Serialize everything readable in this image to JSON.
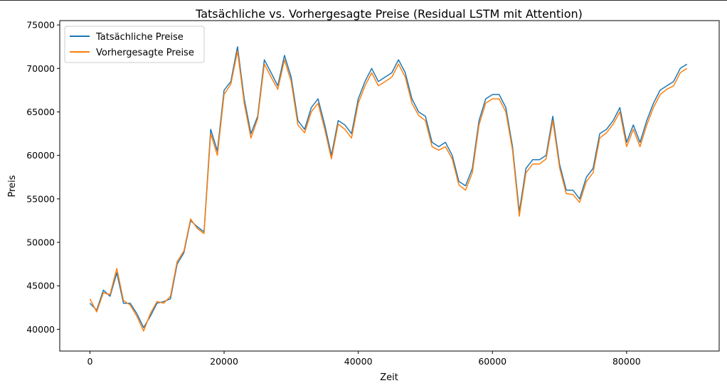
{
  "chart_data": {
    "type": "line",
    "title": "Tatsächliche vs. Vorhergesagte Preise (Residual LSTM mit Attention)",
    "xlabel": "Zeit",
    "ylabel": "Preis",
    "xlim": [
      -4500,
      93800
    ],
    "ylim": [
      37500,
      75500
    ],
    "x_ticks": [
      0,
      20000,
      40000,
      60000,
      80000
    ],
    "x_tick_labels": [
      "0",
      "20000",
      "40000",
      "60000",
      "80000"
    ],
    "y_ticks": [
      40000,
      45000,
      50000,
      55000,
      60000,
      65000,
      70000,
      75000
    ],
    "y_tick_labels": [
      "40000",
      "45000",
      "50000",
      "55000",
      "60000",
      "65000",
      "70000",
      "75000"
    ],
    "grid": false,
    "legend_position": "top-left",
    "series": [
      {
        "name": "Tatsächliche Preise",
        "color": "#1f77b4",
        "x": [
          0,
          1000,
          2000,
          3000,
          4000,
          5000,
          6000,
          7000,
          8000,
          9000,
          10000,
          11000,
          12000,
          13000,
          14000,
          15000,
          16000,
          17000,
          18000,
          19000,
          20000,
          21000,
          22000,
          23000,
          24000,
          25000,
          26000,
          27000,
          28000,
          29000,
          30000,
          31000,
          32000,
          33000,
          34000,
          35000,
          36000,
          37000,
          38000,
          39000,
          40000,
          41000,
          42000,
          43000,
          44000,
          45000,
          46000,
          47000,
          48000,
          49000,
          50000,
          51000,
          52000,
          53000,
          54000,
          55000,
          56000,
          57000,
          58000,
          59000,
          60000,
          61000,
          62000,
          63000,
          64000,
          65000,
          66000,
          67000,
          68000,
          69000,
          70000,
          71000,
          72000,
          73000,
          74000,
          75000,
          76000,
          77000,
          78000,
          79000,
          80000,
          81000,
          82000,
          83000,
          84000,
          85000,
          86000,
          87000,
          88000,
          89000
        ],
        "values": [
          43000,
          42200,
          44500,
          43800,
          46500,
          43000,
          43000,
          41800,
          40200,
          41500,
          43000,
          43200,
          43500,
          47500,
          48800,
          52500,
          51800,
          51200,
          63000,
          60500,
          67500,
          68500,
          72500,
          66500,
          62500,
          64500,
          71000,
          69500,
          68000,
          71500,
          69000,
          64000,
          63000,
          65500,
          66500,
          63500,
          60000,
          64000,
          63500,
          62500,
          66500,
          68500,
          70000,
          68500,
          69000,
          69500,
          71000,
          69500,
          66500,
          65000,
          64500,
          61500,
          61000,
          61500,
          60000,
          57000,
          56500,
          58500,
          64000,
          66500,
          67000,
          67000,
          65500,
          61000,
          53500,
          58500,
          59500,
          59500,
          60000,
          64500,
          59000,
          56000,
          56000,
          55000,
          57500,
          58500,
          62500,
          63000,
          64000,
          65500,
          61500,
          63500,
          61500,
          64000,
          66000,
          67500,
          68000,
          68500,
          70000,
          70500
        ]
      },
      {
        "name": "Vorhergesagte Preise",
        "color": "#ff7f0e",
        "x": [
          0,
          1000,
          2000,
          3000,
          4000,
          5000,
          6000,
          7000,
          8000,
          9000,
          10000,
          11000,
          12000,
          13000,
          14000,
          15000,
          16000,
          17000,
          18000,
          19000,
          20000,
          21000,
          22000,
          23000,
          24000,
          25000,
          26000,
          27000,
          28000,
          29000,
          30000,
          31000,
          32000,
          33000,
          34000,
          35000,
          36000,
          37000,
          38000,
          39000,
          40000,
          41000,
          42000,
          43000,
          44000,
          45000,
          46000,
          47000,
          48000,
          49000,
          50000,
          51000,
          52000,
          53000,
          54000,
          55000,
          56000,
          57000,
          58000,
          59000,
          60000,
          61000,
          62000,
          63000,
          64000,
          65000,
          66000,
          67000,
          68000,
          69000,
          70000,
          71000,
          72000,
          73000,
          74000,
          75000,
          76000,
          77000,
          78000,
          79000,
          80000,
          81000,
          82000,
          83000,
          84000,
          85000,
          86000,
          87000,
          88000,
          89000
        ],
        "values": [
          43500,
          42000,
          44200,
          44000,
          47000,
          43300,
          42800,
          41500,
          39800,
          41800,
          43200,
          43000,
          43800,
          47800,
          49000,
          52700,
          51600,
          51000,
          62500,
          60000,
          67000,
          68200,
          72000,
          66000,
          62000,
          64200,
          70500,
          69000,
          67600,
          71000,
          68500,
          63500,
          62600,
          65000,
          66000,
          63000,
          59600,
          63600,
          63000,
          62000,
          66000,
          68000,
          69500,
          68000,
          68500,
          69000,
          70500,
          69000,
          66000,
          64600,
          64000,
          61000,
          60600,
          61000,
          59600,
          56600,
          56000,
          58000,
          63500,
          66000,
          66500,
          66500,
          65000,
          60600,
          53000,
          58000,
          59000,
          59000,
          59600,
          64000,
          58600,
          55600,
          55500,
          54600,
          57000,
          58000,
          62000,
          62600,
          63600,
          65000,
          61000,
          63000,
          61000,
          63500,
          65500,
          67000,
          67600,
          68000,
          69500,
          70000
        ]
      }
    ]
  }
}
